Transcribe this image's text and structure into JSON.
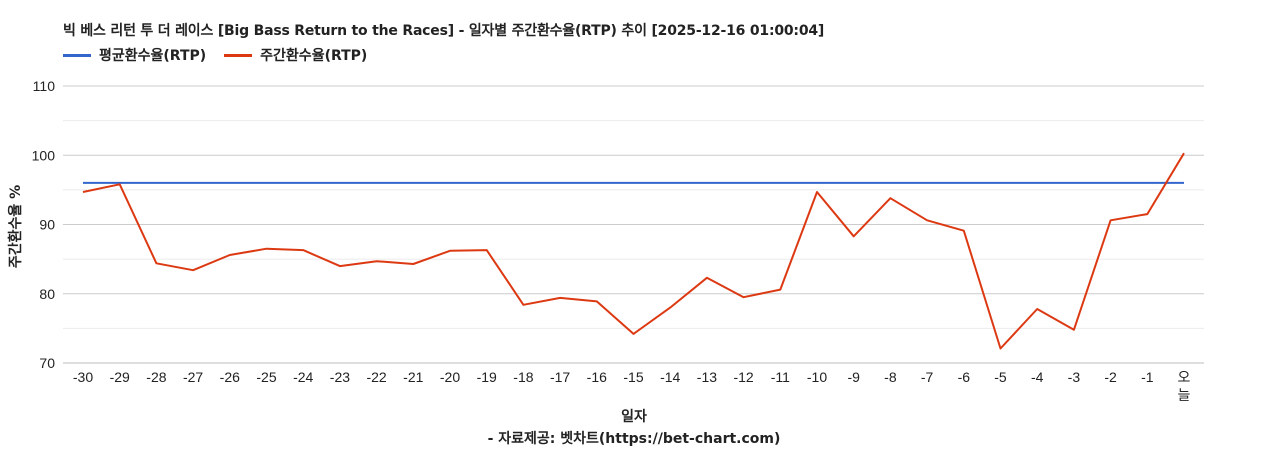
{
  "chart_data": {
    "type": "line",
    "title": "빅 베스 리턴 투 더 레이스 [Big Bass Return to the Races] - 일자별 주간환수율(RTP) 추이 [2025-12-16 01:00:04]",
    "xlabel": "일자",
    "ylabel": "주간환수율 %",
    "ylim": [
      70,
      110
    ],
    "yticks": [
      70,
      80,
      90,
      100,
      110
    ],
    "grid": true,
    "legend_position": "top-left",
    "categories": [
      "-30",
      "-29",
      "-28",
      "-27",
      "-26",
      "-25",
      "-24",
      "-23",
      "-22",
      "-21",
      "-20",
      "-19",
      "-18",
      "-17",
      "-16",
      "-15",
      "-14",
      "-13",
      "-12",
      "-11",
      "-10",
      "-9",
      "-8",
      "-7",
      "-6",
      "-5",
      "-4",
      "-3",
      "-2",
      "-1",
      "오늘"
    ],
    "series": [
      {
        "name": "평균환수율(RTP)",
        "color": "#3366cc",
        "values": [
          96.0,
          96.0,
          96.0,
          96.0,
          96.0,
          96.0,
          96.0,
          96.0,
          96.0,
          96.0,
          96.0,
          96.0,
          96.0,
          96.0,
          96.0,
          96.0,
          96.0,
          96.0,
          96.0,
          96.0,
          96.0,
          96.0,
          96.0,
          96.0,
          96.0,
          96.0,
          96.0,
          96.0,
          96.0,
          96.0,
          96.0
        ]
      },
      {
        "name": "주간환수율(RTP)",
        "color": "#dc3912",
        "values": [
          94.7,
          95.8,
          84.4,
          83.4,
          85.6,
          86.5,
          86.3,
          84.0,
          84.7,
          84.3,
          86.2,
          86.3,
          78.4,
          79.4,
          78.9,
          74.2,
          78.0,
          82.3,
          79.5,
          80.6,
          94.7,
          88.3,
          93.8,
          90.6,
          89.1,
          72.1,
          77.8,
          74.8,
          90.6,
          91.5,
          100.3
        ]
      }
    ]
  },
  "credit": "- 자료제공: 벳차트(https://bet-chart.com)"
}
